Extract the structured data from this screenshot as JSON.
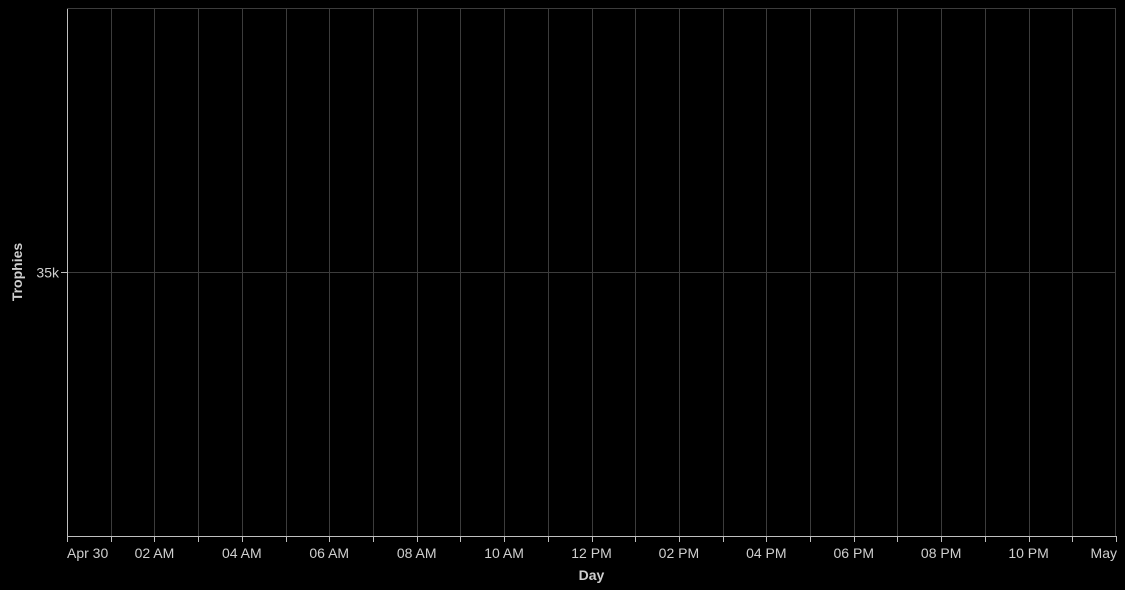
{
  "chart_data": {
    "type": "line",
    "title": "",
    "xlabel": "Day",
    "ylabel": "Trophies",
    "x_ticks": [
      "Apr 30",
      "02 AM",
      "04 AM",
      "06 AM",
      "08 AM",
      "10 AM",
      "12 PM",
      "02 PM",
      "04 PM",
      "06 PM",
      "08 PM",
      "10 PM",
      "May"
    ],
    "y_ticks": [
      "35k"
    ],
    "series": [],
    "grid": true,
    "legend": "none",
    "colors": {
      "background": "#000000",
      "grid": "#3c3c3c",
      "axis": "#bfbfbf",
      "text": "#cfcfcf"
    }
  }
}
